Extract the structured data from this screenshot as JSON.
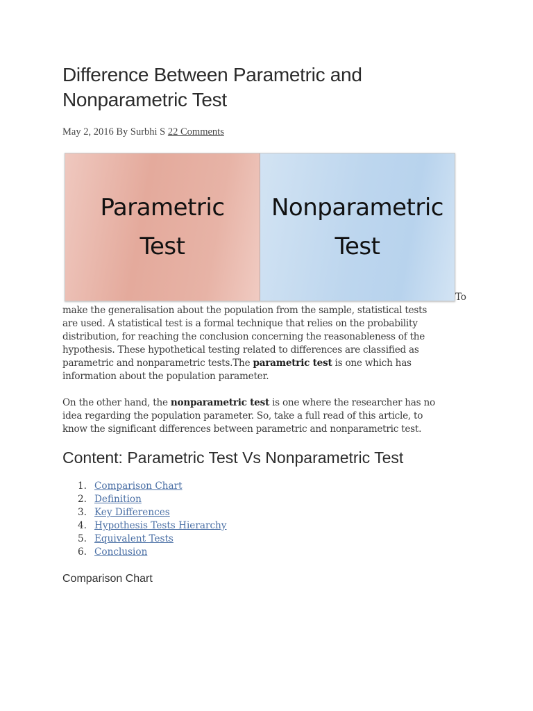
{
  "article": {
    "title_lines": [
      "Difference Between Parametric and",
      "Nonparametric Test"
    ],
    "meta": {
      "date": "May 2, 2016",
      "by": "By",
      "author": "Surbhi S",
      "comments": "22 Comments"
    },
    "hero_image": {
      "left_lines": [
        "Parametric",
        "Test"
      ],
      "right_lines": [
        "Nonparametric",
        "Test"
      ],
      "left_color": "#e4aa9c",
      "right_color": "#bdd6ee"
    },
    "para1": {
      "to": "To",
      "lines": [
        "make the generalisation about the population from the sample, statistical tests",
        "are used. A statistical test is a formal technique that relies on the probability",
        "distribution, for reaching the conclusion concerning the reasonableness of the",
        "hypothesis. These hypothetical testing related to differences are classified as"
      ],
      "line5_pre": "parametric and nonparametric tests.The ",
      "line5_bold": "parametric test",
      "line5_post": " is one which has",
      "line6": "information about the population parameter."
    },
    "para2": {
      "line1_pre": "On the other hand, the ",
      "line1_bold": "nonparametric test",
      "line1_post": " is one where the researcher has no",
      "line2": "idea regarding the population parameter. So, take a full read of this article, to",
      "line3": "know the significant differences between parametric and nonparametric test."
    },
    "content_heading": "Content: Parametric Test Vs Nonparametric Test",
    "toc": [
      {
        "num": "1.",
        "label": "Comparison Chart"
      },
      {
        "num": "2.",
        "label": "Definition"
      },
      {
        "num": "3.",
        "label": "Key Differences"
      },
      {
        "num": "4.",
        "label": "Hypothesis Tests Hierarchy"
      },
      {
        "num": "5.",
        "label": "Equivalent Tests"
      },
      {
        "num": "6.",
        "label": "Conclusion"
      }
    ],
    "section_heading": "Comparison Chart"
  }
}
